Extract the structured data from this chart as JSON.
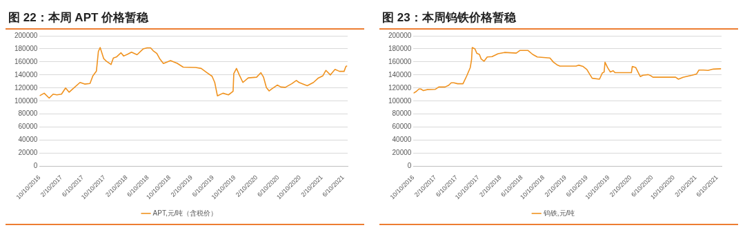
{
  "chart_data": [
    {
      "type": "line",
      "title": "图 22：本周 APT 价格暂稳",
      "legend": "bottom",
      "grid": "y",
      "xlim": [
        "2016-10-10",
        "2021-07-05"
      ],
      "ylim": [
        0,
        200000
      ],
      "yticks": [
        0,
        20000,
        40000,
        60000,
        80000,
        100000,
        120000,
        140000,
        160000,
        180000,
        200000
      ],
      "xticks": [
        {
          "value": "2016-10-10",
          "label": "10/10/2016"
        },
        {
          "value": "2017-02-10",
          "label": "2/10/2017"
        },
        {
          "value": "2017-06-10",
          "label": "6/10/2017"
        },
        {
          "value": "2017-10-10",
          "label": "10/10/2017"
        },
        {
          "value": "2018-02-10",
          "label": "2/10/2018"
        },
        {
          "value": "2018-06-10",
          "label": "6/10/2018"
        },
        {
          "value": "2018-10-10",
          "label": "10/10/2018"
        },
        {
          "value": "2019-02-10",
          "label": "2/10/2019"
        },
        {
          "value": "2019-06-10",
          "label": "6/10/2019"
        },
        {
          "value": "2019-10-10",
          "label": "10/10/2019"
        },
        {
          "value": "2020-02-10",
          "label": "2/10/2020"
        },
        {
          "value": "2020-06-10",
          "label": "6/10/2020"
        },
        {
          "value": "2020-10-10",
          "label": "10/10/2020"
        },
        {
          "value": "2021-02-10",
          "label": "2/10/2021"
        },
        {
          "value": "2021-06-10",
          "label": "6/10/2021"
        }
      ],
      "series": [
        {
          "name": "APT,元/吨（含税价）",
          "color": "#f0921e",
          "x": [
            "2016-10-10",
            "2016-11-05",
            "2016-12-03",
            "2016-12-25",
            "2017-01-15",
            "2017-02-10",
            "2017-03-05",
            "2017-03-25",
            "2017-04-10",
            "2017-05-25",
            "2017-06-20",
            "2017-07-20",
            "2017-08-05",
            "2017-08-25",
            "2017-09-05",
            "2017-09-15",
            "2017-10-05",
            "2017-10-20",
            "2017-11-15",
            "2017-11-28",
            "2017-12-15",
            "2018-01-10",
            "2018-01-25",
            "2018-02-18",
            "2018-03-10",
            "2018-04-10",
            "2018-05-15",
            "2018-06-05",
            "2018-06-25",
            "2018-07-10",
            "2018-07-30",
            "2018-08-15",
            "2018-09-05",
            "2018-10-15",
            "2018-11-20",
            "2018-12-25",
            "2019-03-05",
            "2019-04-05",
            "2019-05-05",
            "2019-06-05",
            "2019-06-20",
            "2019-07-05",
            "2019-08-05",
            "2019-09-05",
            "2019-10-01",
            "2019-10-05",
            "2019-10-20",
            "2019-11-05",
            "2019-11-25",
            "2019-12-25",
            "2020-02-10",
            "2020-03-05",
            "2020-03-20",
            "2020-04-05",
            "2020-04-20",
            "2020-05-05",
            "2020-06-05",
            "2020-06-25",
            "2020-07-20",
            "2020-08-25",
            "2020-09-20",
            "2020-10-05",
            "2020-11-20",
            "2020-12-25",
            "2021-01-20",
            "2021-02-15",
            "2021-03-05",
            "2021-03-30",
            "2021-04-25",
            "2021-05-20",
            "2021-06-15",
            "2021-06-25",
            "2021-07-02"
          ],
          "values": [
            108000,
            112000,
            104500,
            110500,
            109500,
            110500,
            120000,
            113500,
            117500,
            128500,
            126000,
            127000,
            138500,
            146000,
            176000,
            182000,
            165000,
            161000,
            156000,
            166000,
            167500,
            174000,
            169000,
            172000,
            175000,
            171000,
            180000,
            181500,
            181500,
            177000,
            173000,
            165000,
            157500,
            162000,
            158000,
            152000,
            151500,
            150000,
            144000,
            138000,
            128500,
            108000,
            112000,
            109500,
            115000,
            142000,
            150000,
            140000,
            128500,
            135500,
            136500,
            143500,
            136500,
            120500,
            115500,
            118500,
            124500,
            121500,
            121000,
            126500,
            131500,
            128500,
            123500,
            128500,
            135000,
            138500,
            147000,
            140000,
            148500,
            145500,
            145500,
            153000,
            154000
          ]
        }
      ]
    },
    {
      "type": "line",
      "title": "图 23：本周钨铁价格暂稳",
      "legend": "bottom",
      "grid": "y",
      "xlim": [
        "2016-10-10",
        "2021-07-05"
      ],
      "ylim": [
        0,
        200000
      ],
      "yticks": [
        0,
        20000,
        40000,
        60000,
        80000,
        100000,
        120000,
        140000,
        160000,
        180000,
        200000
      ],
      "xticks": [
        {
          "value": "2016-10-10",
          "label": "10/10/2016"
        },
        {
          "value": "2017-02-10",
          "label": "2/10/2017"
        },
        {
          "value": "2017-06-10",
          "label": "6/10/2017"
        },
        {
          "value": "2017-10-10",
          "label": "10/10/2017"
        },
        {
          "value": "2018-02-10",
          "label": "2/10/2018"
        },
        {
          "value": "2018-06-10",
          "label": "6/10/2018"
        },
        {
          "value": "2018-10-10",
          "label": "10/10/2018"
        },
        {
          "value": "2019-02-10",
          "label": "2/10/2019"
        },
        {
          "value": "2019-06-10",
          "label": "6/10/2019"
        },
        {
          "value": "2019-10-10",
          "label": "10/10/2019"
        },
        {
          "value": "2020-02-10",
          "label": "2/10/2020"
        },
        {
          "value": "2020-06-10",
          "label": "6/10/2020"
        },
        {
          "value": "2020-10-10",
          "label": "10/10/2020"
        },
        {
          "value": "2021-02-10",
          "label": "2/10/2021"
        },
        {
          "value": "2021-06-10",
          "label": "6/10/2021"
        }
      ],
      "series": [
        {
          "name": "钨铁,元/吨",
          "color": "#f0921e",
          "x": [
            "2016-10-10",
            "2016-10-25",
            "2016-11-10",
            "2016-11-20",
            "2016-12-05",
            "2016-12-25",
            "2017-02-10",
            "2017-03-01",
            "2017-04-05",
            "2017-04-25",
            "2017-05-10",
            "2017-05-25",
            "2017-06-15",
            "2017-07-15",
            "2017-08-05",
            "2017-08-25",
            "2017-09-01",
            "2017-09-05",
            "2017-09-20",
            "2017-10-01",
            "2017-10-15",
            "2017-10-25",
            "2017-11-10",
            "2017-11-28",
            "2017-12-25",
            "2018-01-20",
            "2018-01-28",
            "2018-03-05",
            "2018-05-10",
            "2018-05-30",
            "2018-07-15",
            "2018-08-10",
            "2018-09-05",
            "2018-11-15",
            "2018-12-05",
            "2018-12-25",
            "2019-01-10",
            "2019-04-10",
            "2019-04-25",
            "2019-05-20",
            "2019-06-10",
            "2019-06-25",
            "2019-07-10",
            "2019-08-20",
            "2019-09-05",
            "2019-09-15",
            "2019-09-20",
            "2019-10-05",
            "2019-10-20",
            "2019-11-05",
            "2019-11-15",
            "2020-02-15",
            "2020-02-20",
            "2020-03-10",
            "2020-03-25",
            "2020-04-05",
            "2020-04-20",
            "2020-05-20",
            "2020-06-05",
            "2020-06-15",
            "2020-10-20",
            "2020-11-05",
            "2020-12-01",
            "2021-01-20",
            "2021-02-15",
            "2021-02-28",
            "2021-03-25",
            "2021-04-20",
            "2021-05-20",
            "2021-07-02"
          ],
          "values": [
            112000,
            114500,
            118500,
            118500,
            116000,
            117500,
            118000,
            121500,
            121500,
            124000,
            128000,
            128000,
            126500,
            126500,
            138500,
            151500,
            163500,
            182000,
            180000,
            173000,
            171500,
            164500,
            161000,
            167500,
            168000,
            171500,
            172500,
            174500,
            173500,
            177500,
            177500,
            171500,
            167500,
            166000,
            159500,
            155500,
            153500,
            153500,
            155000,
            153000,
            148500,
            141500,
            135000,
            133500,
            143000,
            144500,
            159500,
            151000,
            144500,
            146500,
            143500,
            143500,
            153000,
            151500,
            143500,
            137500,
            139500,
            140500,
            138500,
            136500,
            136500,
            133500,
            136500,
            139500,
            141500,
            147500,
            147500,
            147000,
            149000,
            149500
          ]
        }
      ]
    }
  ]
}
